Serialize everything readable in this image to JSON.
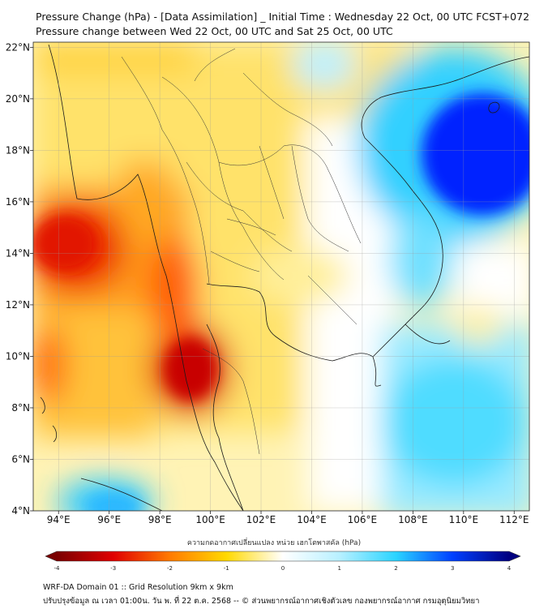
{
  "title_line1": "Pressure Change (hPa) - [Data Assimilation] _ Initial Time : Wednesday 22 Oct, 00 UTC FCST+072",
  "title_line2": "Pressure change between Wed 22 Oct, 00 UTC and Sat 25 Oct, 00 UTC",
  "map": {
    "lon_range": [
      93,
      112.6
    ],
    "lat_range": [
      4,
      22.2
    ],
    "x_ticks": [
      {
        "lon": 94,
        "label": "94°E"
      },
      {
        "lon": 96,
        "label": "96°E"
      },
      {
        "lon": 98,
        "label": "98°E"
      },
      {
        "lon": 100,
        "label": "100°E"
      },
      {
        "lon": 102,
        "label": "102°E"
      },
      {
        "lon": 104,
        "label": "104°E"
      },
      {
        "lon": 106,
        "label": "106°E"
      },
      {
        "lon": 108,
        "label": "108°E"
      },
      {
        "lon": 110,
        "label": "110°E"
      },
      {
        "lon": 112,
        "label": "112°E"
      }
    ],
    "y_ticks": [
      {
        "lat": 22,
        "label": "22°N"
      },
      {
        "lat": 20,
        "label": "20°N"
      },
      {
        "lat": 18,
        "label": "18°N"
      },
      {
        "lat": 16,
        "label": "16°N"
      },
      {
        "lat": 14,
        "label": "14°N"
      },
      {
        "lat": 12,
        "label": "12°N"
      },
      {
        "lat": 10,
        "label": "10°N"
      },
      {
        "lat": 8,
        "label": "8°N"
      },
      {
        "lat": 6,
        "label": "6°N"
      },
      {
        "lat": 4,
        "label": "4°N"
      }
    ],
    "grid": true,
    "features": [
      {
        "name": "strong-fall-west",
        "lon": 94.2,
        "lat": 14.0,
        "value": -3.2
      },
      {
        "name": "strong-fall-andaman",
        "lon": 99.0,
        "lat": 9.6,
        "value": -3.6
      },
      {
        "name": "fall-north-burma",
        "lon": 95.0,
        "lat": 19.5,
        "value": -1.5
      },
      {
        "name": "strong-rise-south-china-sea",
        "lon": 110.8,
        "lat": 17.8,
        "value": 4.0
      },
      {
        "name": "rise-south-west",
        "lon": 96.0,
        "lat": 4.6,
        "value": 2.0
      },
      {
        "name": "rise-east",
        "lon": 110.5,
        "lat": 7.0,
        "value": 2.0
      }
    ]
  },
  "colorbar": {
    "label": "ความกดอากาศเปลี่ยนแปลง หน่วย เฮกโตพาสคัล (hPa)",
    "min": -4,
    "max": 4,
    "ticks": [
      {
        "value": -4,
        "label": "-4"
      },
      {
        "value": -3,
        "label": "-3"
      },
      {
        "value": -2,
        "label": "-2"
      },
      {
        "value": -1,
        "label": "-1"
      },
      {
        "value": 0,
        "label": "0"
      },
      {
        "value": 1,
        "label": "1"
      },
      {
        "value": 2,
        "label": "2"
      },
      {
        "value": 3,
        "label": "3"
      },
      {
        "value": 4,
        "label": "4"
      }
    ],
    "stops": [
      {
        "v": -4,
        "color": "#7a0000"
      },
      {
        "v": -3,
        "color": "#e00000"
      },
      {
        "v": -2,
        "color": "#ff7a00"
      },
      {
        "v": -1,
        "color": "#ffd900"
      },
      {
        "v": 0,
        "color": "#ffffff"
      },
      {
        "v": 1,
        "color": "#b8f0ff"
      },
      {
        "v": 2,
        "color": "#2ad4ff"
      },
      {
        "v": 3,
        "color": "#0040ff"
      },
      {
        "v": 4,
        "color": "#000080"
      }
    ]
  },
  "footer_line1": "WRF-DA Domain 01 :: Grid Resolution 9km x 9km",
  "footer_line2": "ปรับปรุงข้อมูล ณ เวลา 01:00น. วัน พ. ที่ 22 ต.ค. 2568 -- © ส่วนพยากรณ์อากาศเชิงตัวเลข กองพยากรณ์อากาศ กรมอุตุนิยมวิทยา"
}
